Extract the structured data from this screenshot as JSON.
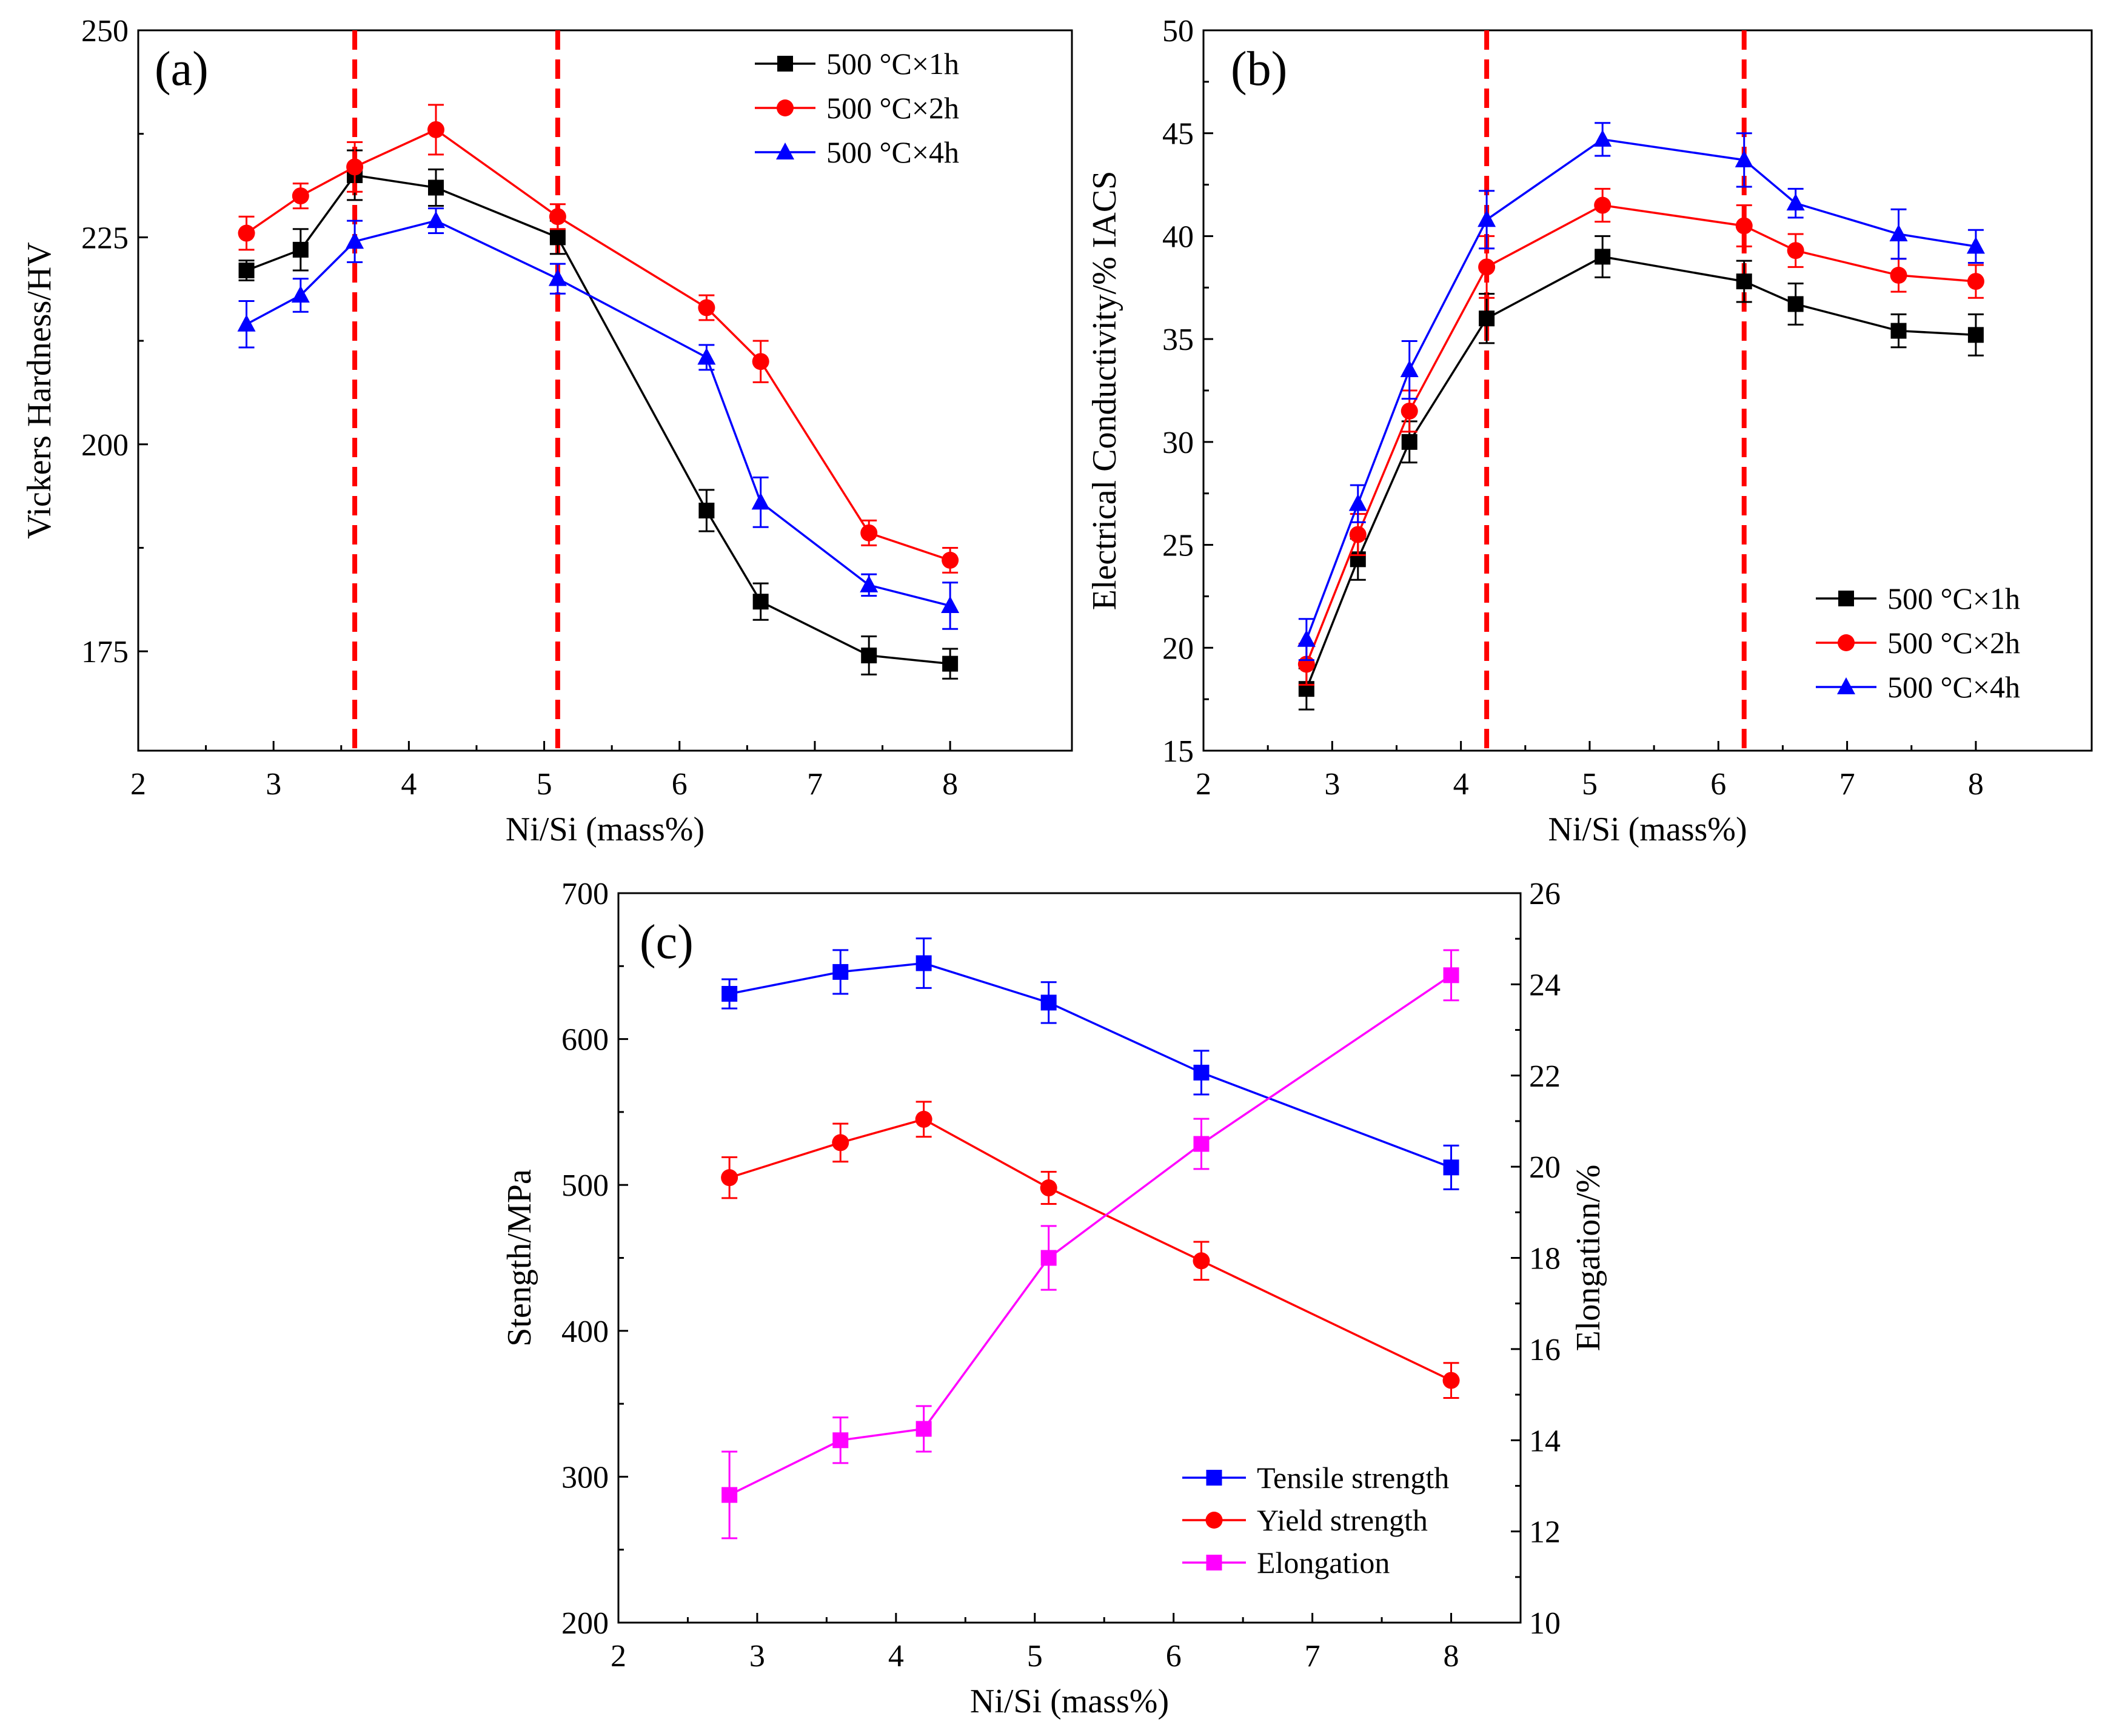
{
  "chart_data": [
    {
      "id": "a",
      "type": "line",
      "panel_label": "(a)",
      "xlabel": "Ni/Si (mass%)",
      "ylabel": "Vickers Hardness/HV",
      "xlim": [
        2,
        8.9
      ],
      "ylim": [
        163,
        250
      ],
      "xticks": [
        2,
        3,
        4,
        5,
        6,
        7,
        8
      ],
      "yticks": [
        175,
        200,
        225,
        250
      ],
      "vlines": [
        3.6,
        5.1
      ],
      "x": [
        2.8,
        3.2,
        3.6,
        4.2,
        5.1,
        6.2,
        6.6,
        7.4,
        8.0
      ],
      "legend": {
        "position": "top-right"
      },
      "series": [
        {
          "name": "500 °C×1h",
          "color": "#000000",
          "marker": "square",
          "values": [
            221,
            223.5,
            232.5,
            231,
            225,
            192,
            181,
            174.5,
            173.5
          ],
          "errors": [
            1.2,
            2.5,
            3,
            2.2,
            2,
            2.5,
            2.2,
            2.3,
            1.8
          ]
        },
        {
          "name": "500 °C×2h",
          "color": "#ff0000",
          "marker": "circle",
          "values": [
            225.5,
            230,
            233.5,
            238,
            227.5,
            216.5,
            210,
            189.3,
            186
          ],
          "errors": [
            2,
            1.5,
            3,
            3,
            1.5,
            1.5,
            2.5,
            1.5,
            1.5
          ]
        },
        {
          "name": "500 °C×4h",
          "color": "#0000ff",
          "marker": "triangle",
          "values": [
            214.5,
            218,
            224.5,
            227,
            220,
            210.5,
            193,
            183,
            180.5
          ],
          "errors": [
            2.8,
            2,
            2.5,
            1.5,
            1.8,
            1.5,
            3,
            1.3,
            2.8
          ]
        }
      ]
    },
    {
      "id": "b",
      "type": "line",
      "panel_label": "(b)",
      "xlabel": "Ni/Si (mass%)",
      "ylabel": "Electrical Conductivity/% IACS",
      "xlim": [
        2,
        8.9
      ],
      "ylim": [
        15,
        50
      ],
      "xticks": [
        2,
        3,
        4,
        5,
        6,
        7,
        8
      ],
      "yticks": [
        15,
        20,
        25,
        30,
        35,
        40,
        45,
        50
      ],
      "vlines": [
        4.2,
        6.2
      ],
      "x": [
        2.8,
        3.2,
        3.6,
        4.2,
        5.1,
        6.2,
        6.6,
        7.4,
        8.0
      ],
      "legend": {
        "position": "bottom-right"
      },
      "series": [
        {
          "name": "500 °C×1h",
          "color": "#000000",
          "marker": "square",
          "values": [
            18,
            24.3,
            30,
            36,
            39,
            37.8,
            36.7,
            35.4,
            35.2
          ],
          "errors": [
            1,
            1,
            1,
            1.2,
            1,
            1,
            1,
            0.8,
            1
          ]
        },
        {
          "name": "500 °C×2h",
          "color": "#ff0000",
          "marker": "circle",
          "values": [
            19.2,
            25.5,
            31.5,
            38.5,
            41.5,
            40.5,
            39.3,
            38.1,
            37.8
          ],
          "errors": [
            1,
            1,
            1,
            1.5,
            0.8,
            1,
            0.8,
            0.8,
            0.8
          ]
        },
        {
          "name": "500 °C×4h",
          "color": "#0000ff",
          "marker": "triangle",
          "values": [
            20.4,
            27,
            33.5,
            40.8,
            44.7,
            43.7,
            41.6,
            40.1,
            39.5
          ],
          "errors": [
            1,
            0.9,
            1.4,
            1.4,
            0.8,
            1.3,
            0.7,
            1.2,
            0.8
          ]
        }
      ]
    },
    {
      "id": "c",
      "type": "line",
      "panel_label": "(c)",
      "xlabel": "Ni/Si (mass%)",
      "ylabel": "Stength/MPa",
      "y2label": "Elongation/%",
      "xlim": [
        2,
        8.5
      ],
      "ylim": [
        200,
        700
      ],
      "y2lim": [
        10,
        26
      ],
      "xticks": [
        2,
        3,
        4,
        5,
        6,
        7,
        8
      ],
      "yticks": [
        200,
        300,
        400,
        500,
        600,
        700
      ],
      "y2ticks": [
        10,
        12,
        14,
        16,
        18,
        20,
        22,
        24,
        26
      ],
      "x": [
        2.8,
        3.6,
        4.2,
        5.1,
        6.2,
        8.0
      ],
      "legend": {
        "position": "bottom-right"
      },
      "series": [
        {
          "name": "Tensile strength",
          "color": "#0000ff",
          "marker": "square",
          "axis": "left",
          "values": [
            631,
            646,
            652,
            625,
            577,
            512
          ],
          "errors": [
            10,
            15,
            17,
            14,
            15,
            15
          ]
        },
        {
          "name": "Yield strength",
          "color": "#ff0000",
          "marker": "circle",
          "axis": "left",
          "values": [
            505,
            529,
            545,
            498,
            448,
            366
          ],
          "errors": [
            14,
            13,
            12,
            11,
            13,
            12
          ]
        },
        {
          "name": "Elongation",
          "color": "#ff00ff",
          "marker": "square",
          "axis": "right",
          "values": [
            12.8,
            14,
            14.25,
            18,
            20.5,
            24.2
          ],
          "errors": [
            0.95,
            0.5,
            0.5,
            0.7,
            0.55,
            0.55
          ]
        }
      ]
    }
  ]
}
